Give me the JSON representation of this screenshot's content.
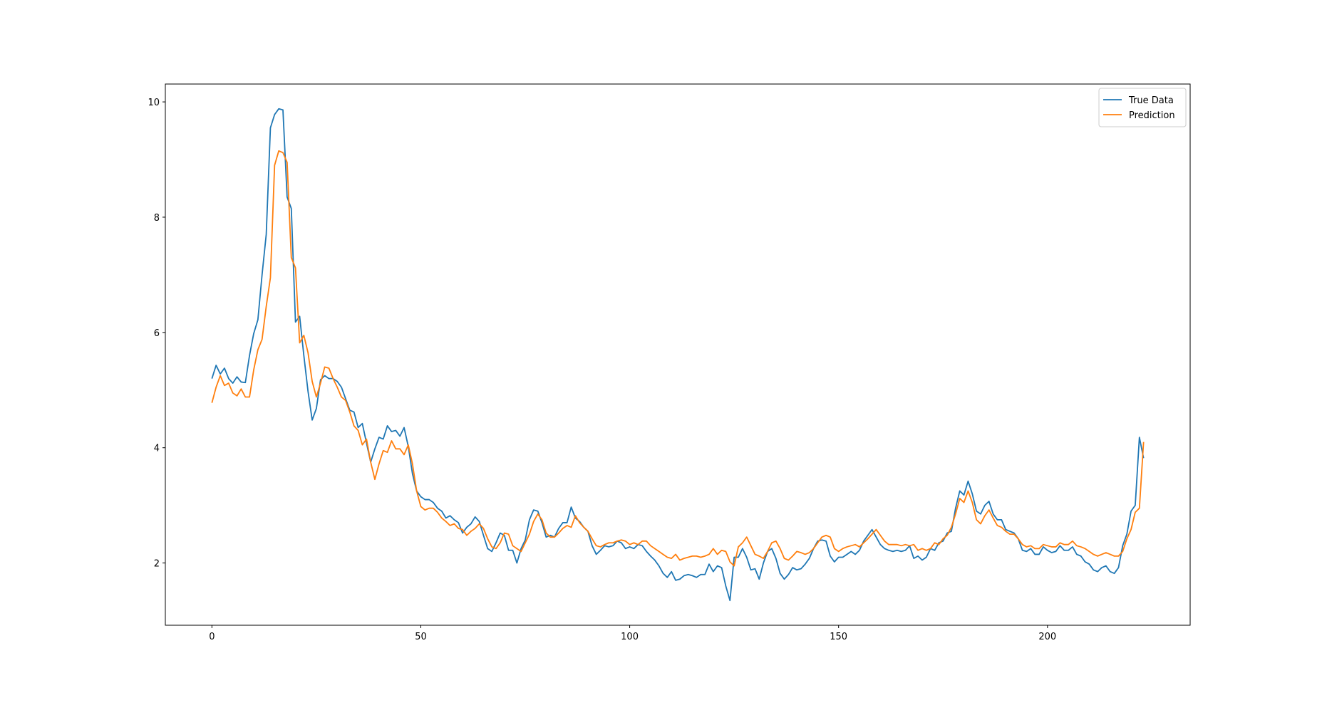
{
  "chart_data": {
    "type": "line",
    "x": [
      0,
      1,
      2,
      3,
      4,
      5,
      6,
      7,
      8,
      9,
      10,
      11,
      12,
      13,
      14,
      15,
      16,
      17,
      18,
      19,
      20,
      21,
      22,
      23,
      24,
      25,
      26,
      27,
      28,
      29,
      30,
      31,
      32,
      33,
      34,
      35,
      36,
      37,
      38,
      39,
      40,
      41,
      42,
      43,
      44,
      45,
      46,
      47,
      48,
      49,
      50,
      51,
      52,
      53,
      54,
      55,
      56,
      57,
      58,
      59,
      60,
      61,
      62,
      63,
      64,
      65,
      66,
      67,
      68,
      69,
      70,
      71,
      72,
      73,
      74,
      75,
      76,
      77,
      78,
      79,
      80,
      81,
      82,
      83,
      84,
      85,
      86,
      87,
      88,
      89,
      90,
      91,
      92,
      93,
      94,
      95,
      96,
      97,
      98,
      99,
      100,
      101,
      102,
      103,
      104,
      105,
      106,
      107,
      108,
      109,
      110,
      111,
      112,
      113,
      114,
      115,
      116,
      117,
      118,
      119,
      120,
      121,
      122,
      123,
      124,
      125,
      126,
      127,
      128,
      129,
      130,
      131,
      132,
      133,
      134,
      135,
      136,
      137,
      138,
      139,
      140,
      141,
      142,
      143,
      144,
      145,
      146,
      147,
      148,
      149,
      150,
      151,
      152,
      153,
      154,
      155,
      156,
      157,
      158,
      159,
      160,
      161,
      162,
      163,
      164,
      165,
      166,
      167,
      168,
      169,
      170,
      171,
      172,
      173,
      174,
      175,
      176,
      177,
      178,
      179,
      180,
      181,
      182,
      183,
      184,
      185,
      186,
      187,
      188,
      189,
      190,
      191,
      192,
      193,
      194,
      195,
      196,
      197,
      198,
      199,
      200,
      201,
      202,
      203,
      204,
      205,
      206,
      207,
      208,
      209,
      210,
      211,
      212,
      213,
      214,
      215,
      216,
      217,
      218,
      219,
      220,
      221,
      222,
      223
    ],
    "series": [
      {
        "name": "True Data",
        "color": "#1f77b4",
        "values": [
          5.2,
          5.43,
          5.28,
          5.38,
          5.2,
          5.12,
          5.23,
          5.14,
          5.13,
          5.6,
          5.98,
          6.22,
          7.0,
          7.7,
          9.55,
          9.78,
          9.88,
          9.86,
          8.35,
          8.15,
          6.18,
          6.28,
          5.6,
          4.98,
          4.48,
          4.68,
          5.18,
          5.25,
          5.2,
          5.2,
          5.15,
          5.05,
          4.85,
          4.65,
          4.62,
          4.35,
          4.42,
          4.08,
          3.75,
          3.98,
          4.18,
          4.15,
          4.38,
          4.28,
          4.3,
          4.2,
          4.35,
          4.02,
          3.55,
          3.25,
          3.15,
          3.1,
          3.1,
          3.05,
          2.95,
          2.9,
          2.78,
          2.82,
          2.75,
          2.7,
          2.52,
          2.62,
          2.68,
          2.8,
          2.72,
          2.48,
          2.25,
          2.2,
          2.35,
          2.52,
          2.48,
          2.22,
          2.22,
          2.0,
          2.25,
          2.4,
          2.75,
          2.92,
          2.9,
          2.7,
          2.45,
          2.48,
          2.45,
          2.6,
          2.7,
          2.7,
          2.97,
          2.78,
          2.72,
          2.62,
          2.55,
          2.3,
          2.15,
          2.22,
          2.3,
          2.28,
          2.3,
          2.38,
          2.35,
          2.25,
          2.28,
          2.25,
          2.32,
          2.3,
          2.2,
          2.12,
          2.05,
          1.95,
          1.82,
          1.75,
          1.85,
          1.7,
          1.72,
          1.78,
          1.8,
          1.78,
          1.75,
          1.8,
          1.8,
          1.98,
          1.85,
          1.95,
          1.92,
          1.6,
          1.35,
          2.1,
          2.1,
          2.25,
          2.1,
          1.88,
          1.9,
          1.72,
          2.0,
          2.2,
          2.25,
          2.08,
          1.82,
          1.72,
          1.8,
          1.92,
          1.88,
          1.9,
          1.98,
          2.08,
          2.25,
          2.38,
          2.4,
          2.38,
          2.12,
          2.02,
          2.1,
          2.1,
          2.15,
          2.2,
          2.15,
          2.22,
          2.38,
          2.48,
          2.58,
          2.45,
          2.32,
          2.25,
          2.22,
          2.2,
          2.22,
          2.2,
          2.22,
          2.3,
          2.08,
          2.12,
          2.05,
          2.1,
          2.25,
          2.22,
          2.35,
          2.38,
          2.52,
          2.55,
          2.95,
          3.25,
          3.18,
          3.42,
          3.2,
          2.9,
          2.85,
          3.0,
          3.07,
          2.85,
          2.75,
          2.75,
          2.58,
          2.55,
          2.52,
          2.42,
          2.22,
          2.2,
          2.25,
          2.15,
          2.15,
          2.28,
          2.22,
          2.18,
          2.2,
          2.3,
          2.22,
          2.22,
          2.28,
          2.15,
          2.12,
          2.02,
          1.98,
          1.88,
          1.85,
          1.92,
          1.95,
          1.85,
          1.82,
          1.92,
          2.3,
          2.5,
          2.9,
          3.0,
          4.18,
          3.82
        ]
      },
      {
        "name": "Prediction",
        "color": "#ff7f0e",
        "values": [
          4.78,
          5.05,
          5.25,
          5.08,
          5.12,
          4.95,
          4.9,
          5.02,
          4.88,
          4.88,
          5.35,
          5.7,
          5.88,
          6.45,
          6.95,
          8.9,
          9.15,
          9.12,
          8.95,
          7.3,
          7.12,
          5.82,
          5.95,
          5.65,
          5.15,
          4.88,
          5.12,
          5.4,
          5.38,
          5.2,
          5.05,
          4.88,
          4.82,
          4.62,
          4.38,
          4.3,
          4.05,
          4.15,
          3.75,
          3.45,
          3.72,
          3.95,
          3.92,
          4.12,
          3.98,
          3.98,
          3.88,
          4.05,
          3.72,
          3.25,
          2.98,
          2.92,
          2.95,
          2.95,
          2.88,
          2.78,
          2.72,
          2.65,
          2.68,
          2.6,
          2.58,
          2.48,
          2.55,
          2.6,
          2.68,
          2.6,
          2.42,
          2.28,
          2.25,
          2.35,
          2.52,
          2.5,
          2.3,
          2.25,
          2.2,
          2.35,
          2.5,
          2.72,
          2.85,
          2.75,
          2.52,
          2.45,
          2.45,
          2.52,
          2.6,
          2.65,
          2.62,
          2.82,
          2.7,
          2.62,
          2.55,
          2.42,
          2.3,
          2.28,
          2.32,
          2.35,
          2.35,
          2.38,
          2.4,
          2.38,
          2.32,
          2.35,
          2.32,
          2.38,
          2.38,
          2.3,
          2.25,
          2.2,
          2.15,
          2.1,
          2.08,
          2.15,
          2.05,
          2.08,
          2.1,
          2.12,
          2.12,
          2.1,
          2.12,
          2.15,
          2.25,
          2.15,
          2.22,
          2.2,
          2.02,
          1.95,
          2.28,
          2.35,
          2.45,
          2.3,
          2.15,
          2.12,
          2.08,
          2.2,
          2.35,
          2.38,
          2.25,
          2.08,
          2.05,
          2.12,
          2.2,
          2.18,
          2.15,
          2.18,
          2.25,
          2.35,
          2.45,
          2.48,
          2.45,
          2.25,
          2.2,
          2.25,
          2.28,
          2.3,
          2.32,
          2.28,
          2.35,
          2.42,
          2.5,
          2.58,
          2.48,
          2.38,
          2.32,
          2.32,
          2.32,
          2.3,
          2.32,
          2.3,
          2.32,
          2.22,
          2.25,
          2.22,
          2.25,
          2.35,
          2.32,
          2.42,
          2.48,
          2.62,
          2.85,
          3.12,
          3.05,
          3.25,
          3.05,
          2.75,
          2.68,
          2.82,
          2.92,
          2.78,
          2.65,
          2.62,
          2.55,
          2.5,
          2.5,
          2.42,
          2.32,
          2.28,
          2.3,
          2.25,
          2.25,
          2.32,
          2.3,
          2.28,
          2.28,
          2.35,
          2.32,
          2.32,
          2.38,
          2.3,
          2.28,
          2.25,
          2.2,
          2.15,
          2.12,
          2.15,
          2.18,
          2.15,
          2.12,
          2.12,
          2.2,
          2.42,
          2.58,
          2.88,
          2.95,
          4.1
        ]
      }
    ],
    "xlim": [
      -11.15,
      234.15
    ],
    "xticks": [
      0,
      50,
      100,
      150,
      200
    ],
    "ylim": [
      0.92,
      10.31
    ],
    "yticks": [
      2,
      4,
      6,
      8,
      10
    ],
    "legend": "upper right"
  }
}
